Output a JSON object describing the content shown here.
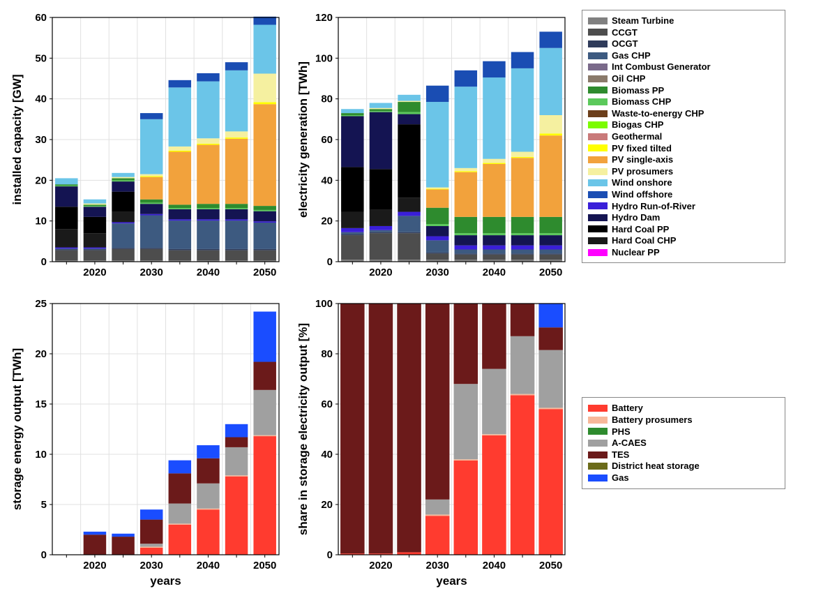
{
  "layout": {
    "grid_cols": 3,
    "grid_rows": 2,
    "background": "#ffffff"
  },
  "generation_legend": {
    "title": null,
    "items": [
      {
        "label": "Steam Turbine",
        "color": "#808080"
      },
      {
        "label": "CCGT",
        "color": "#4d4d4d"
      },
      {
        "label": "OCGT",
        "color": "#2f3b5a"
      },
      {
        "label": "Gas CHP",
        "color": "#3d5a80"
      },
      {
        "label": "Int Combust Generator",
        "color": "#7a6a8a"
      },
      {
        "label": "Oil CHP",
        "color": "#8a7a6a"
      },
      {
        "label": "Biomass PP",
        "color": "#2e8b2e"
      },
      {
        "label": "Biomass CHP",
        "color": "#5bc95b"
      },
      {
        "label": "Waste-to-energy CHP",
        "color": "#6b3e1a"
      },
      {
        "label": "Biogas CHP",
        "color": "#7cfc00"
      },
      {
        "label": "Geothermal",
        "color": "#c97a7a"
      },
      {
        "label": "PV fixed tilted",
        "color": "#ffff00"
      },
      {
        "label": "PV single-axis",
        "color": "#f2a23c"
      },
      {
        "label": "PV prosumers",
        "color": "#f5f0a0"
      },
      {
        "label": "Wind onshore",
        "color": "#6bc5e8"
      },
      {
        "label": "Wind offshore",
        "color": "#1a4db3"
      },
      {
        "label": "Hydro Run-of-River",
        "color": "#3a1fd9"
      },
      {
        "label": "Hydro Dam",
        "color": "#141452"
      },
      {
        "label": "Hard Coal PP",
        "color": "#000000"
      },
      {
        "label": "Hard Coal CHP",
        "color": "#1a1a1a"
      },
      {
        "label": "Nuclear PP",
        "color": "#ff00ff"
      }
    ]
  },
  "storage_legend": {
    "items": [
      {
        "label": "Battery",
        "color": "#ff3b2f"
      },
      {
        "label": "Battery prosumers",
        "color": "#f7b89a"
      },
      {
        "label": "PHS",
        "color": "#2e8b2e"
      },
      {
        "label": "A-CAES",
        "color": "#a0a0a0"
      },
      {
        "label": "TES",
        "color": "#6b1a1a"
      },
      {
        "label": "District heat storage",
        "color": "#6b6b1a"
      },
      {
        "label": "Gas",
        "color": "#1a4dff"
      }
    ]
  },
  "chart_capacity": {
    "type": "stacked-bar",
    "ylabel": "installed capacity [GW]",
    "ylim": [
      0,
      60
    ],
    "ytick_step": 10,
    "xvalues": [
      2015,
      2020,
      2025,
      2030,
      2035,
      2040,
      2045,
      2050
    ],
    "xticks_shown": [
      2020,
      2030,
      2040,
      2050
    ],
    "grid_color": "#e0e0e0",
    "bar_width": 0.8,
    "series_order": [
      "Steam Turbine",
      "CCGT",
      "OCGT",
      "Gas CHP",
      "Hydro Run-of-River",
      "Hard Coal CHP",
      "Hard Coal PP",
      "Hydro Dam",
      "Biomass CHP",
      "Biomass PP",
      "PV single-axis",
      "PV fixed tilted",
      "PV prosumers",
      "Wind onshore",
      "Wind offshore"
    ],
    "data": {
      "2015": {
        "Steam Turbine": 0.3,
        "CCGT": 2.5,
        "OCGT": 0.2,
        "Gas CHP": 0.2,
        "Hydro Run-of-River": 0.3,
        "Hard Coal CHP": 4.5,
        "Hard Coal PP": 5.5,
        "Hydro Dam": 5.0,
        "Biomass CHP": 0.2,
        "Biomass PP": 0.3,
        "PV single-axis": 0,
        "PV fixed tilted": 0,
        "PV prosumers": 0,
        "Wind onshore": 1.5,
        "Wind offshore": 0
      },
      "2020": {
        "Steam Turbine": 0.3,
        "CCGT": 2.5,
        "OCGT": 0.2,
        "Gas CHP": 0.2,
        "Hydro Run-of-River": 0.3,
        "Hard Coal CHP": 3.5,
        "Hard Coal PP": 4.0,
        "Hydro Dam": 2.5,
        "Biomass CHP": 0.2,
        "Biomass PP": 0.3,
        "PV single-axis": 0,
        "PV fixed tilted": 0,
        "PV prosumers": 0.3,
        "Wind onshore": 1.0,
        "Wind offshore": 0
      },
      "2025": {
        "Steam Turbine": 0.3,
        "CCGT": 2.8,
        "OCGT": 0.3,
        "Gas CHP": 6.0,
        "Hydro Run-of-River": 0.3,
        "Hard Coal CHP": 2.5,
        "Hard Coal PP": 5.0,
        "Hydro Dam": 2.5,
        "Biomass CHP": 0.3,
        "Biomass PP": 0.5,
        "PV single-axis": 0,
        "PV fixed tilted": 0,
        "PV prosumers": 0.3,
        "Wind onshore": 1.0,
        "Wind offshore": 0
      },
      "2030": {
        "Steam Turbine": 0.3,
        "CCGT": 2.8,
        "OCGT": 0.3,
        "Gas CHP": 8.0,
        "Hydro Run-of-River": 0.3,
        "Hard Coal CHP": 0,
        "Hard Coal PP": 0,
        "Hydro Dam": 2.5,
        "Biomass CHP": 0.3,
        "Biomass PP": 0.8,
        "PV single-axis": 5.5,
        "PV fixed tilted": 0.2,
        "PV prosumers": 0.5,
        "Wind onshore": 13.5,
        "Wind offshore": 1.5
      },
      "2035": {
        "Steam Turbine": 0.3,
        "CCGT": 2.5,
        "OCGT": 0.3,
        "Gas CHP": 7.0,
        "Hydro Run-of-River": 0.3,
        "Hard Coal CHP": 0,
        "Hard Coal PP": 0,
        "Hydro Dam": 2.5,
        "Biomass CHP": 0.3,
        "Biomass PP": 0.8,
        "PV single-axis": 13.0,
        "PV fixed tilted": 0.3,
        "PV prosumers": 1.0,
        "Wind onshore": 14.5,
        "Wind offshore": 1.8
      },
      "2040": {
        "Steam Turbine": 0.3,
        "CCGT": 2.5,
        "OCGT": 0.3,
        "Gas CHP": 7.0,
        "Hydro Run-of-River": 0.3,
        "Hard Coal CHP": 0,
        "Hard Coal PP": 0,
        "Hydro Dam": 2.5,
        "Biomass CHP": 0.3,
        "Biomass PP": 1.0,
        "PV single-axis": 14.5,
        "PV fixed tilted": 0.3,
        "PV prosumers": 1.3,
        "Wind onshore": 14.0,
        "Wind offshore": 2.0
      },
      "2045": {
        "Steam Turbine": 0.3,
        "CCGT": 2.5,
        "OCGT": 0.3,
        "Gas CHP": 7.0,
        "Hydro Run-of-River": 0.3,
        "Hard Coal CHP": 0,
        "Hard Coal PP": 0,
        "Hydro Dam": 2.5,
        "Biomass CHP": 0.3,
        "Biomass PP": 1.0,
        "PV single-axis": 16.0,
        "PV fixed tilted": 0.3,
        "PV prosumers": 1.5,
        "Wind onshore": 15.0,
        "Wind offshore": 2.0
      },
      "2050": {
        "Steam Turbine": 0.3,
        "CCGT": 2.5,
        "OCGT": 0.3,
        "Gas CHP": 6.5,
        "Hydro Run-of-River": 0.3,
        "Hard Coal CHP": 0,
        "Hard Coal PP": 0,
        "Hydro Dam": 2.5,
        "Biomass CHP": 0.3,
        "Biomass PP": 1.0,
        "PV single-axis": 25.0,
        "PV fixed tilted": 0.5,
        "PV prosumers": 7.0,
        "Wind onshore": 12.0,
        "Wind offshore": 2.0
      }
    }
  },
  "chart_generation": {
    "type": "stacked-bar",
    "ylabel": "electricity generation [TWh]",
    "ylim": [
      0,
      120
    ],
    "ytick_step": 20,
    "xvalues": [
      2015,
      2020,
      2025,
      2030,
      2035,
      2040,
      2045,
      2050
    ],
    "xticks_shown": [
      2020,
      2030,
      2040,
      2050
    ],
    "grid_color": "#e0e0e0",
    "bar_width": 0.8,
    "series_order": [
      "Steam Turbine",
      "CCGT",
      "OCGT",
      "Gas CHP",
      "Hydro Run-of-River",
      "Hard Coal CHP",
      "Hard Coal PP",
      "Hydro Dam",
      "Biomass CHP",
      "Biomass PP",
      "PV single-axis",
      "PV fixed tilted",
      "PV prosumers",
      "Wind onshore",
      "Wind offshore"
    ],
    "data": {
      "2015": {
        "Steam Turbine": 1.0,
        "CCGT": 12.0,
        "OCGT": 0.5,
        "Gas CHP": 1.0,
        "Hydro Run-of-River": 2.0,
        "Hard Coal CHP": 8.0,
        "Hard Coal PP": 22.0,
        "Hydro Dam": 25.0,
        "Biomass CHP": 0.5,
        "Biomass PP": 1.0,
        "PV single-axis": 0,
        "PV fixed tilted": 0,
        "PV prosumers": 0,
        "Wind onshore": 2.0,
        "Wind offshore": 0
      },
      "2020": {
        "Steam Turbine": 1.0,
        "CCGT": 13.0,
        "OCGT": 0.5,
        "Gas CHP": 1.0,
        "Hydro Run-of-River": 2.0,
        "Hard Coal CHP": 8.0,
        "Hard Coal PP": 20.0,
        "Hydro Dam": 28.0,
        "Biomass CHP": 0.5,
        "Biomass PP": 1.0,
        "PV single-axis": 0,
        "PV fixed tilted": 0,
        "PV prosumers": 0.5,
        "Wind onshore": 2.5,
        "Wind offshore": 0
      },
      "2025": {
        "Steam Turbine": 1.0,
        "CCGT": 13.0,
        "OCGT": 0.5,
        "Gas CHP": 8.0,
        "Hydro Run-of-River": 2.0,
        "Hard Coal CHP": 7.0,
        "Hard Coal PP": 36.0,
        "Hydro Dam": 5.0,
        "Biomass CHP": 1.0,
        "Biomass PP": 5.0,
        "PV single-axis": 0,
        "PV fixed tilted": 0,
        "PV prosumers": 0.5,
        "Wind onshore": 3.0,
        "Wind offshore": 0
      },
      "2030": {
        "Steam Turbine": 1.0,
        "CCGT": 3.0,
        "OCGT": 0.5,
        "Gas CHP": 6.0,
        "Hydro Run-of-River": 2.0,
        "Hard Coal CHP": 0,
        "Hard Coal PP": 0,
        "Hydro Dam": 5.0,
        "Biomass CHP": 1.0,
        "Biomass PP": 8.0,
        "PV single-axis": 9.0,
        "PV fixed tilted": 0.3,
        "PV prosumers": 0.7,
        "Wind onshore": 42.0,
        "Wind offshore": 8.0
      },
      "2035": {
        "Steam Turbine": 1.0,
        "CCGT": 2.5,
        "OCGT": 0.5,
        "Gas CHP": 2.0,
        "Hydro Run-of-River": 2.0,
        "Hard Coal CHP": 0,
        "Hard Coal PP": 0,
        "Hydro Dam": 5.0,
        "Biomass CHP": 1.0,
        "Biomass PP": 8.0,
        "PV single-axis": 22.0,
        "PV fixed tilted": 0.5,
        "PV prosumers": 1.5,
        "Wind onshore": 40.0,
        "Wind offshore": 8.0
      },
      "2040": {
        "Steam Turbine": 1.0,
        "CCGT": 2.5,
        "OCGT": 0.5,
        "Gas CHP": 2.0,
        "Hydro Run-of-River": 2.0,
        "Hard Coal CHP": 0,
        "Hard Coal PP": 0,
        "Hydro Dam": 5.0,
        "Biomass CHP": 1.0,
        "Biomass PP": 8.0,
        "PV single-axis": 26.0,
        "PV fixed tilted": 0.5,
        "PV prosumers": 2.0,
        "Wind onshore": 40.0,
        "Wind offshore": 8.0
      },
      "2045": {
        "Steam Turbine": 1.0,
        "CCGT": 2.5,
        "OCGT": 0.5,
        "Gas CHP": 2.0,
        "Hydro Run-of-River": 2.0,
        "Hard Coal CHP": 0,
        "Hard Coal PP": 0,
        "Hydro Dam": 5.0,
        "Biomass CHP": 1.0,
        "Biomass PP": 8.0,
        "PV single-axis": 29.0,
        "PV fixed tilted": 0.5,
        "PV prosumers": 2.5,
        "Wind onshore": 41.0,
        "Wind offshore": 8.0
      },
      "2050": {
        "Steam Turbine": 1.0,
        "CCGT": 2.5,
        "OCGT": 0.5,
        "Gas CHP": 2.0,
        "Hydro Run-of-River": 2.0,
        "Hard Coal CHP": 0,
        "Hard Coal PP": 0,
        "Hydro Dam": 5.0,
        "Biomass CHP": 1.0,
        "Biomass PP": 8.0,
        "PV single-axis": 40.0,
        "PV fixed tilted": 1.0,
        "PV prosumers": 9.0,
        "Wind onshore": 33.0,
        "Wind offshore": 8.0
      }
    }
  },
  "chart_storage_output": {
    "type": "stacked-bar",
    "ylabel": "storage energy output [TWh]",
    "xlabel": "years",
    "ylim": [
      0,
      25
    ],
    "ytick_step": 5,
    "xvalues": [
      2015,
      2020,
      2025,
      2030,
      2035,
      2040,
      2045,
      2050
    ],
    "xticks_shown": [
      2020,
      2030,
      2040,
      2050
    ],
    "grid_color": "#e0e0e0",
    "bar_width": 0.8,
    "series_order": [
      "Battery",
      "Battery prosumers",
      "PHS",
      "A-CAES",
      "TES",
      "District heat storage",
      "Gas"
    ],
    "data": {
      "2015": {
        "Battery": 0,
        "Battery prosumers": 0,
        "PHS": 0,
        "A-CAES": 0,
        "TES": 0,
        "District heat storage": 0,
        "Gas": 0
      },
      "2020": {
        "Battery": 0,
        "Battery prosumers": 0,
        "PHS": 0,
        "A-CAES": 0,
        "TES": 2.0,
        "District heat storage": 0,
        "Gas": 0.3
      },
      "2025": {
        "Battery": 0,
        "Battery prosumers": 0,
        "PHS": 0,
        "A-CAES": 0,
        "TES": 1.8,
        "District heat storage": 0,
        "Gas": 0.3
      },
      "2030": {
        "Battery": 0.7,
        "Battery prosumers": 0.1,
        "PHS": 0,
        "A-CAES": 0.3,
        "TES": 2.4,
        "District heat storage": 0,
        "Gas": 1.0
      },
      "2035": {
        "Battery": 3.0,
        "Battery prosumers": 0.1,
        "PHS": 0,
        "A-CAES": 2.0,
        "TES": 3.0,
        "District heat storage": 0,
        "Gas": 1.3
      },
      "2040": {
        "Battery": 4.5,
        "Battery prosumers": 0.1,
        "PHS": 0,
        "A-CAES": 2.5,
        "TES": 2.5,
        "District heat storage": 0,
        "Gas": 1.3
      },
      "2045": {
        "Battery": 7.8,
        "Battery prosumers": 0.1,
        "PHS": 0,
        "A-CAES": 2.8,
        "TES": 1.0,
        "District heat storage": 0,
        "Gas": 1.3
      },
      "2050": {
        "Battery": 11.8,
        "Battery prosumers": 0.1,
        "PHS": 0,
        "A-CAES": 4.5,
        "TES": 2.8,
        "District heat storage": 0,
        "Gas": 5.0
      }
    }
  },
  "chart_storage_share": {
    "type": "stacked-bar",
    "ylabel": "share in storage electricity output [%]",
    "xlabel": "years",
    "ylim": [
      0,
      100
    ],
    "ytick_step": 20,
    "xvalues": [
      2015,
      2020,
      2025,
      2030,
      2035,
      2040,
      2045,
      2050
    ],
    "xticks_shown": [
      2020,
      2030,
      2040,
      2050
    ],
    "grid_color": "#e0e0e0",
    "bar_width": 0.85,
    "series_order": [
      "Battery",
      "Battery prosumers",
      "PHS",
      "A-CAES",
      "TES",
      "District heat storage",
      "Gas"
    ],
    "data": {
      "2015": {
        "Battery": 0.5,
        "Battery prosumers": 0,
        "PHS": 0,
        "A-CAES": 0,
        "TES": 99.5,
        "District heat storage": 0,
        "Gas": 0
      },
      "2020": {
        "Battery": 0.5,
        "Battery prosumers": 0,
        "PHS": 0,
        "A-CAES": 0,
        "TES": 99.5,
        "District heat storage": 0,
        "Gas": 0
      },
      "2025": {
        "Battery": 1.0,
        "Battery prosumers": 0,
        "PHS": 0,
        "A-CAES": 0,
        "TES": 99.0,
        "District heat storage": 0,
        "Gas": 0
      },
      "2030": {
        "Battery": 15.5,
        "Battery prosumers": 0.5,
        "PHS": 0,
        "A-CAES": 6.0,
        "TES": 78.0,
        "District heat storage": 0,
        "Gas": 0
      },
      "2035": {
        "Battery": 37.5,
        "Battery prosumers": 0.5,
        "PHS": 0,
        "A-CAES": 30.0,
        "TES": 32.0,
        "District heat storage": 0,
        "Gas": 0
      },
      "2040": {
        "Battery": 47.5,
        "Battery prosumers": 0.5,
        "PHS": 0,
        "A-CAES": 26.0,
        "TES": 26.0,
        "District heat storage": 0,
        "Gas": 0
      },
      "2045": {
        "Battery": 63.5,
        "Battery prosumers": 0.5,
        "PHS": 0,
        "A-CAES": 23.0,
        "TES": 13.0,
        "District heat storage": 0,
        "Gas": 0
      },
      "2050": {
        "Battery": 58.0,
        "Battery prosumers": 0.5,
        "PHS": 0,
        "A-CAES": 23.0,
        "TES": 9.0,
        "District heat storage": 0,
        "Gas": 9.5
      }
    }
  }
}
